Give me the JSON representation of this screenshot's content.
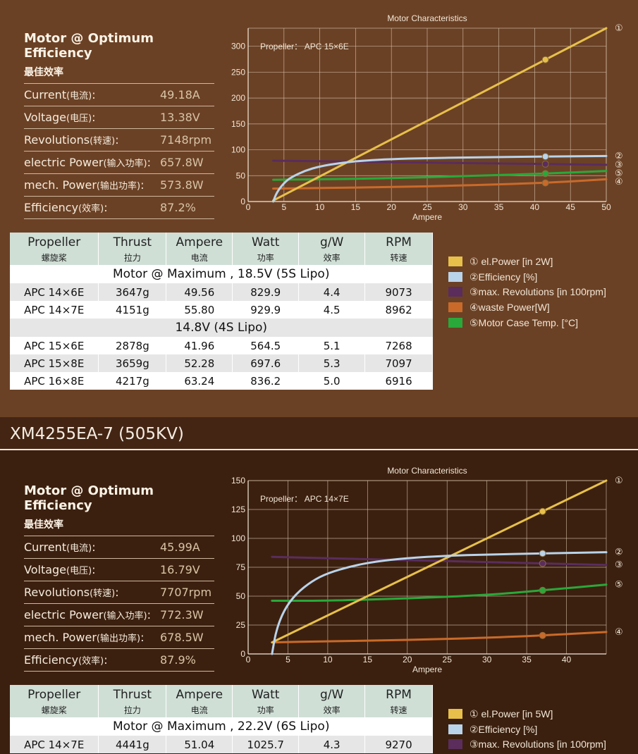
{
  "sections": [
    {
      "model": "",
      "optimum": {
        "title": "Motor @ Optimum Efficiency",
        "title_cn": "最佳效率",
        "rows": [
          {
            "label": "Current",
            "label_cn": "(电流)",
            "suffix": ":",
            "value": "49.18A"
          },
          {
            "label": "Voltage",
            "label_cn": "(电压)",
            "suffix": ":",
            "value": "13.38V"
          },
          {
            "label": "Revolutions",
            "label_cn": "(转速)",
            "suffix": ":",
            "value": "7148rpm"
          },
          {
            "label": "electric Power",
            "label_cn": "(输入功率)",
            "suffix": ":",
            "value": "657.8W"
          },
          {
            "label": "mech. Power",
            "label_cn": "(输出功率)",
            "suffix": ":",
            "value": "573.8W"
          },
          {
            "label": "Efficiency",
            "label_cn": "(效率)",
            "suffix": ":",
            "value": "87.2%"
          }
        ]
      },
      "chart_data": {
        "type": "line",
        "title": "Motor Characteristics",
        "xlabel": "Ampere",
        "ylabel": "",
        "annotation": "Propeller： APC 15×6E",
        "xlim": [
          0,
          50
        ],
        "ylim": [
          0,
          335
        ],
        "xticks": [
          0,
          5,
          10,
          15,
          20,
          25,
          30,
          35,
          40,
          45,
          50
        ],
        "yticks": [
          0,
          50,
          100,
          150,
          200,
          250,
          300
        ],
        "grid": true,
        "marker_x": 41.5,
        "series": [
          {
            "name": "①",
            "color": "#e7c04b",
            "x": [
              3.5,
              50
            ],
            "y": [
              2,
              335
            ]
          },
          {
            "name": "②",
            "color": "#b9d3ea",
            "x": [
              3.5,
              4,
              5,
              6,
              8,
              10,
              13,
              16,
              20,
              25,
              30,
              35,
              41.5,
              50
            ],
            "y": [
              0,
              18,
              36,
              47,
              60,
              68,
              75,
              79,
              82,
              84,
              85,
              86,
              87,
              88
            ]
          },
          {
            "name": "③",
            "color": "#5a2d5d",
            "x": [
              3.5,
              50
            ],
            "y": [
              79,
              71
            ]
          },
          {
            "name": "④",
            "color": "#c96a2a",
            "x": [
              3.5,
              10,
              20,
              30,
              41.5,
              50
            ],
            "y": [
              25,
              26,
              28,
              31,
              36,
              43
            ]
          },
          {
            "name": "⑤",
            "color": "#2aa83a",
            "x": [
              3.5,
              10,
              20,
              30,
              41.5,
              50
            ],
            "y": [
              42,
              43,
              45,
              49,
              54,
              59
            ]
          }
        ],
        "end_labels": [
          "①",
          "②",
          "③",
          "⑤",
          "④"
        ]
      },
      "table": {
        "headers": [
          {
            "en": "Propeller",
            "cn": "螺旋桨"
          },
          {
            "en": "Thrust",
            "cn": "拉力"
          },
          {
            "en": "Ampere",
            "cn": "电流"
          },
          {
            "en": "Watt",
            "cn": "功率"
          },
          {
            "en": "g/W",
            "cn": "效率"
          },
          {
            "en": "RPM",
            "cn": "转速"
          }
        ],
        "groups": [
          {
            "label": "Motor @ Maximum , 18.5V (5S Lipo)",
            "rows": [
              [
                "APC 14×6E",
                "3647g",
                "49.56",
                "829.9",
                "4.4",
                "9073"
              ],
              [
                "APC 14×7E",
                "4151g",
                "55.80",
                "929.9",
                "4.5",
                "8962"
              ]
            ]
          },
          {
            "label": "14.8V (4S Lipo)",
            "rows": [
              [
                "APC 15×6E",
                "2878g",
                "41.96",
                "564.5",
                "5.1",
                "7268"
              ],
              [
                "APC 15×8E",
                "3659g",
                "52.28",
                "697.6",
                "5.3",
                "7097"
              ],
              [
                "APC 16×8E",
                "4217g",
                "63.24",
                "836.2",
                "5.0",
                "6916"
              ]
            ]
          }
        ]
      },
      "legend": [
        {
          "color": "#e7c04b",
          "label": "① el.Power [in 2W]"
        },
        {
          "color": "#b9d3ea",
          "label": "②Efficiency [%]"
        },
        {
          "color": "#5a2d5d",
          "label": "③max. Revolutions [in 100rpm]"
        },
        {
          "color": "#c96a2a",
          "label": "④waste Power[W]"
        },
        {
          "color": "#2aa83a",
          "label": "⑤Motor Case Temp. [°C]"
        }
      ]
    },
    {
      "model": "XM4255EA-7 (505KV)",
      "optimum": {
        "title": "Motor @ Optimum Efficiency",
        "title_cn": "最佳效率",
        "rows": [
          {
            "label": "Current",
            "label_cn": "(电流)",
            "suffix": ":",
            "value": "45.99A"
          },
          {
            "label": "Voltage",
            "label_cn": "(电压)",
            "suffix": ":",
            "value": "16.79V"
          },
          {
            "label": "Revolutions",
            "label_cn": "(转速)",
            "suffix": ":",
            "value": "7707rpm"
          },
          {
            "label": "electric Power",
            "label_cn": "(输入功率)",
            "suffix": ":",
            "value": "772.3W"
          },
          {
            "label": "mech. Power",
            "label_cn": "(输出功率)",
            "suffix": ":",
            "value": "678.5W"
          },
          {
            "label": "Efficiency",
            "label_cn": "(效率)",
            "suffix": ":",
            "value": "87.9%"
          }
        ]
      },
      "chart_data": {
        "type": "line",
        "title": "Motor Characteristics",
        "xlabel": "Ampere",
        "ylabel": "",
        "annotation": "Propeller： APC 14×7E",
        "xlim": [
          0,
          45
        ],
        "ylim": [
          0,
          150
        ],
        "xticks": [
          0,
          5,
          10,
          15,
          20,
          25,
          30,
          35,
          40
        ],
        "yticks": [
          0,
          25,
          50,
          75,
          100,
          125,
          150
        ],
        "grid": true,
        "marker_x": 37,
        "series": [
          {
            "name": "①",
            "color": "#e7c04b",
            "x": [
              3,
              45
            ],
            "y": [
              10,
              150
            ]
          },
          {
            "name": "②",
            "color": "#b9d3ea",
            "x": [
              3,
              3.5,
              4.5,
              6,
              8,
              10,
              13,
              16,
              20,
              25,
              30,
              37,
              45
            ],
            "y": [
              0,
              20,
              38,
              52,
              63,
              70,
              76,
              80,
              83,
              85,
              86,
              87,
              88
            ]
          },
          {
            "name": "③",
            "color": "#5a2d5d",
            "x": [
              3,
              45
            ],
            "y": [
              84,
              77
            ]
          },
          {
            "name": "④",
            "color": "#c96a2a",
            "x": [
              3,
              10,
              20,
              30,
              37,
              45
            ],
            "y": [
              10,
              11,
              12,
              14,
              16,
              19
            ]
          },
          {
            "name": "⑤",
            "color": "#2aa83a",
            "x": [
              3,
              10,
              20,
              30,
              37,
              45
            ],
            "y": [
              46,
              46,
              48,
              51,
              55,
              60
            ]
          }
        ],
        "end_labels": [
          "①",
          "②",
          "③",
          "⑤",
          "④"
        ]
      },
      "table": {
        "headers": [
          {
            "en": "Propeller",
            "cn": "螺旋桨"
          },
          {
            "en": "Thrust",
            "cn": "拉力"
          },
          {
            "en": "Ampere",
            "cn": "电流"
          },
          {
            "en": "Watt",
            "cn": "功率"
          },
          {
            "en": "g/W",
            "cn": "效率"
          },
          {
            "en": "RPM",
            "cn": "转速"
          }
        ],
        "groups": [
          {
            "label": "Motor @ Maximum , 22.2V (6S Lipo)",
            "rows": [
              [
                "APC 14×7E",
                "4441g",
                "51.04",
                "1025.7",
                "4.3",
                "9270"
              ]
            ]
          }
        ]
      },
      "legend": [
        {
          "color": "#e7c04b",
          "label": "① el.Power [in 5W]"
        },
        {
          "color": "#b9d3ea",
          "label": "②Efficiency [%]"
        },
        {
          "color": "#5a2d5d",
          "label": "③max. Revolutions [in 100rpm]"
        }
      ]
    }
  ]
}
